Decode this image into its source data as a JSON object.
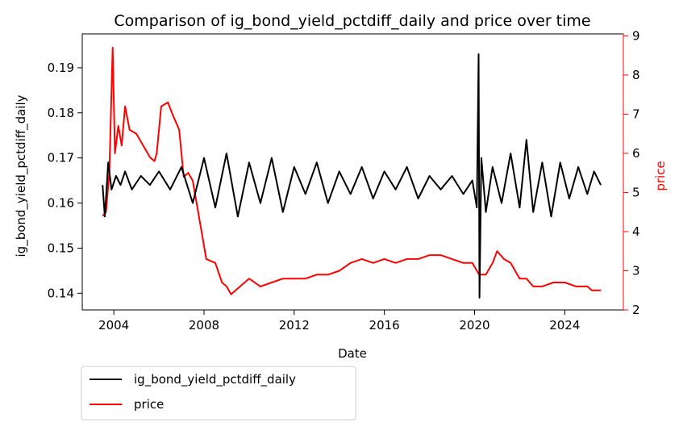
{
  "chart_data": {
    "type": "line",
    "title": "Comparison of ig_bond_yield_pctdiff_daily and price over time",
    "xlabel": "Date",
    "ylabel_left": "ig_bond_yield_pctdiff_daily",
    "ylabel_right": "price",
    "xlim": [
      2002.6,
      2026.6
    ],
    "ylim_left": [
      0.1363,
      0.1975
    ],
    "ylim_right": [
      2.0,
      9.05
    ],
    "x_ticks": [
      2004,
      2008,
      2012,
      2016,
      2020,
      2024
    ],
    "x_tick_labels": [
      "2004",
      "2008",
      "2012",
      "2016",
      "2020",
      "2024"
    ],
    "y_left_ticks": [
      0.14,
      0.15,
      0.16,
      0.17,
      0.18,
      0.19
    ],
    "y_left_tick_labels": [
      "0.14",
      "0.15",
      "0.16",
      "0.17",
      "0.18",
      "0.19"
    ],
    "y_right_ticks": [
      2,
      3,
      4,
      5,
      6,
      7,
      8,
      9
    ],
    "y_right_tick_labels": [
      "2",
      "3",
      "4",
      "5",
      "6",
      "7",
      "8",
      "9"
    ],
    "grid": false,
    "legend_placement": "below plot, left",
    "colors": {
      "left_axis": "#000000",
      "right_axis": "#ff0000"
    },
    "series": [
      {
        "name": "ig_bond_yield_pctdiff_daily",
        "axis": "left",
        "color": "#000000",
        "x": [
          2003.5,
          2003.6,
          2003.75,
          2003.9,
          2004.1,
          2004.3,
          2004.5,
          2004.8,
          2005.2,
          2005.6,
          2006.0,
          2006.5,
          2007.0,
          2007.5,
          2008.0,
          2008.5,
          2009.0,
          2009.5,
          2010.0,
          2010.5,
          2011.0,
          2011.5,
          2012.0,
          2012.5,
          2013.0,
          2013.5,
          2014.0,
          2014.5,
          2015.0,
          2015.5,
          2016.0,
          2016.5,
          2017.0,
          2017.5,
          2018.0,
          2018.5,
          2019.0,
          2019.5,
          2019.9,
          2020.1,
          2020.18,
          2020.22,
          2020.3,
          2020.5,
          2020.8,
          2021.2,
          2021.6,
          2022.0,
          2022.3,
          2022.6,
          2023.0,
          2023.4,
          2023.8,
          2024.2,
          2024.6,
          2025.0,
          2025.3,
          2025.6
        ],
        "values": [
          0.164,
          0.157,
          0.169,
          0.163,
          0.166,
          0.164,
          0.167,
          0.163,
          0.166,
          0.164,
          0.167,
          0.163,
          0.168,
          0.16,
          0.17,
          0.159,
          0.171,
          0.157,
          0.169,
          0.16,
          0.17,
          0.158,
          0.168,
          0.162,
          0.169,
          0.16,
          0.167,
          0.162,
          0.168,
          0.161,
          0.167,
          0.163,
          0.168,
          0.161,
          0.166,
          0.163,
          0.166,
          0.162,
          0.165,
          0.159,
          0.193,
          0.139,
          0.17,
          0.158,
          0.168,
          0.16,
          0.171,
          0.159,
          0.174,
          0.158,
          0.169,
          0.157,
          0.169,
          0.161,
          0.168,
          0.162,
          0.167,
          0.164
        ]
      },
      {
        "name": "price",
        "axis": "right",
        "color": "#ff0000",
        "x": [
          2003.5,
          2003.65,
          2003.8,
          2003.95,
          2004.05,
          2004.2,
          2004.35,
          2004.5,
          2004.7,
          2005.0,
          2005.3,
          2005.6,
          2005.8,
          2005.9,
          2006.1,
          2006.4,
          2006.6,
          2006.9,
          2007.1,
          2007.3,
          2007.5,
          2007.8,
          2008.1,
          2008.5,
          2008.8,
          2009.0,
          2009.2,
          2009.6,
          2010.0,
          2010.5,
          2011.0,
          2011.5,
          2012.0,
          2012.5,
          2013.0,
          2013.5,
          2014.0,
          2014.5,
          2015.0,
          2015.5,
          2016.0,
          2016.5,
          2017.0,
          2017.5,
          2018.0,
          2018.5,
          2019.0,
          2019.5,
          2019.9,
          2020.2,
          2020.5,
          2020.8,
          2021.0,
          2021.3,
          2021.6,
          2022.0,
          2022.3,
          2022.6,
          2023.0,
          2023.5,
          2024.0,
          2024.5,
          2025.0,
          2025.2,
          2025.5,
          2025.6
        ],
        "values": [
          4.4,
          4.5,
          5.5,
          8.7,
          6.0,
          6.7,
          6.2,
          7.2,
          6.6,
          6.5,
          6.2,
          5.9,
          5.8,
          6.0,
          7.2,
          7.3,
          7.0,
          6.6,
          5.4,
          5.5,
          5.3,
          4.3,
          3.3,
          3.2,
          2.7,
          2.6,
          2.4,
          2.6,
          2.8,
          2.6,
          2.7,
          2.8,
          2.8,
          2.8,
          2.9,
          2.9,
          3.0,
          3.2,
          3.3,
          3.2,
          3.3,
          3.2,
          3.3,
          3.3,
          3.4,
          3.4,
          3.3,
          3.2,
          3.2,
          2.9,
          2.9,
          3.2,
          3.5,
          3.3,
          3.2,
          2.8,
          2.8,
          2.6,
          2.6,
          2.7,
          2.7,
          2.6,
          2.6,
          2.5,
          2.5,
          2.5
        ]
      }
    ]
  }
}
